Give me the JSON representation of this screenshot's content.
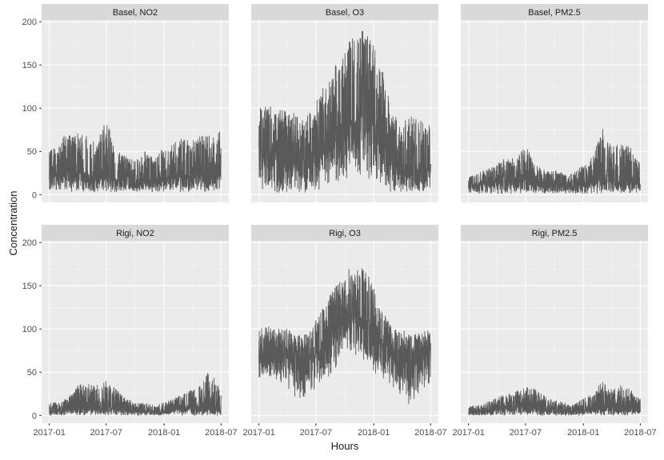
{
  "chart_data": {
    "type": "line",
    "layout": "facet grid 2 rows x 3 columns",
    "xlabel": "Hours",
    "ylabel": "Concentration",
    "ylim": [
      0,
      200
    ],
    "y_ticks": [
      "0",
      "50",
      "100",
      "150",
      "200"
    ],
    "x_range": [
      "2017-01-01",
      "2018-07-01"
    ],
    "x_ticks": [
      {
        "value": "2017-01-01",
        "label": "2017-01"
      },
      {
        "value": "2017-07-01",
        "label": "2017-07"
      },
      {
        "value": "2018-01-01",
        "label": "2018-01"
      },
      {
        "value": "2018-07-01",
        "label": "2018-07"
      }
    ],
    "line_color": "#595959",
    "panel_background": "#ebebeb",
    "strip_background": "#d9d9d9",
    "grid": true,
    "panels": [
      {
        "title": "Basel, NO2",
        "x": [
          "2017-01-01",
          "2017-02-01",
          "2017-03-01",
          "2017-04-01",
          "2017-05-01",
          "2017-06-01",
          "2017-07-01",
          "2017-08-01",
          "2017-09-01",
          "2017-10-01",
          "2017-11-01",
          "2017-12-01",
          "2018-01-01",
          "2018-02-01",
          "2018-03-01",
          "2018-04-01",
          "2018-05-01",
          "2018-06-01",
          "2018-07-01"
        ],
        "y_min": [
          2,
          3,
          3,
          3,
          3,
          3,
          3,
          3,
          3,
          3,
          3,
          3,
          3,
          3,
          3,
          3,
          3,
          3,
          3
        ],
        "y_mean": [
          22,
          24,
          26,
          25,
          22,
          20,
          20,
          18,
          15,
          14,
          16,
          15,
          18,
          20,
          22,
          22,
          24,
          25,
          26
        ],
        "y_max": [
          50,
          58,
          75,
          72,
          68,
          60,
          90,
          50,
          45,
          40,
          50,
          42,
          55,
          60,
          65,
          62,
          70,
          72,
          80
        ]
      },
      {
        "title": "Basel, O3",
        "x": [
          "2017-01-01",
          "2017-02-01",
          "2017-03-01",
          "2017-04-01",
          "2017-05-01",
          "2017-06-01",
          "2017-07-01",
          "2017-08-01",
          "2017-09-01",
          "2017-10-01",
          "2017-11-01",
          "2017-12-01",
          "2018-01-01",
          "2018-02-01",
          "2018-03-01",
          "2018-04-01",
          "2018-05-01",
          "2018-06-01",
          "2018-07-01"
        ],
        "y_min": [
          2,
          2,
          2,
          2,
          2,
          2,
          2,
          5,
          10,
          15,
          20,
          20,
          15,
          5,
          2,
          2,
          2,
          2,
          2
        ],
        "y_mean": [
          40,
          45,
          45,
          42,
          42,
          40,
          45,
          60,
          70,
          80,
          90,
          95,
          85,
          60,
          40,
          30,
          30,
          30,
          30
        ],
        "y_max": [
          100,
          105,
          100,
          95,
          95,
          90,
          110,
          130,
          150,
          170,
          185,
          190,
          175,
          140,
          95,
          90,
          90,
          85,
          80
        ]
      },
      {
        "title": "Basel, PM2.5",
        "x": [
          "2017-01-01",
          "2017-02-01",
          "2017-03-01",
          "2017-04-01",
          "2017-05-01",
          "2017-06-01",
          "2017-07-01",
          "2017-08-01",
          "2017-09-01",
          "2017-10-01",
          "2017-11-01",
          "2017-12-01",
          "2018-01-01",
          "2018-02-01",
          "2018-03-01",
          "2018-04-01",
          "2018-05-01",
          "2018-06-01",
          "2018-07-01"
        ],
        "y_min": [
          1,
          1,
          1,
          1,
          1,
          1,
          1,
          1,
          1,
          1,
          1,
          1,
          1,
          1,
          1,
          1,
          1,
          1,
          1
        ],
        "y_mean": [
          10,
          12,
          14,
          15,
          14,
          12,
          18,
          12,
          10,
          10,
          10,
          9,
          12,
          15,
          18,
          16,
          15,
          14,
          14
        ],
        "y_max": [
          20,
          25,
          30,
          35,
          45,
          40,
          58,
          35,
          28,
          28,
          25,
          25,
          35,
          45,
          78,
          55,
          60,
          55,
          35
        ]
      },
      {
        "title": "Rigi, NO2",
        "x": [
          "2017-01-01",
          "2017-02-01",
          "2017-03-01",
          "2017-04-01",
          "2017-05-01",
          "2017-06-01",
          "2017-07-01",
          "2017-08-01",
          "2017-09-01",
          "2017-10-01",
          "2017-11-01",
          "2017-12-01",
          "2018-01-01",
          "2018-02-01",
          "2018-03-01",
          "2018-04-01",
          "2018-05-01",
          "2018-06-01",
          "2018-07-01"
        ],
        "y_min": [
          0,
          0,
          0,
          0,
          0,
          0,
          0,
          0,
          0,
          0,
          0,
          0,
          0,
          0,
          0,
          0,
          0,
          0,
          0
        ],
        "y_mean": [
          5,
          5,
          6,
          8,
          9,
          8,
          10,
          8,
          6,
          5,
          5,
          4,
          5,
          6,
          8,
          8,
          10,
          8,
          6
        ],
        "y_max": [
          15,
          15,
          20,
          35,
          40,
          35,
          42,
          30,
          20,
          15,
          15,
          12,
          15,
          20,
          25,
          30,
          35,
          60,
          25
        ]
      },
      {
        "title": "Rigi, O3",
        "x": [
          "2017-01-01",
          "2017-02-01",
          "2017-03-01",
          "2017-04-01",
          "2017-05-01",
          "2017-06-01",
          "2017-07-01",
          "2017-08-01",
          "2017-09-01",
          "2017-10-01",
          "2017-11-01",
          "2017-12-01",
          "2018-01-01",
          "2018-02-01",
          "2018-03-01",
          "2018-04-01",
          "2018-05-01",
          "2018-06-01",
          "2018-07-01"
        ],
        "y_min": [
          40,
          45,
          40,
          30,
          20,
          20,
          30,
          40,
          50,
          60,
          65,
          60,
          50,
          40,
          30,
          20,
          10,
          20,
          40
        ],
        "y_mean": [
          70,
          72,
          70,
          68,
          66,
          65,
          70,
          85,
          100,
          110,
          115,
          112,
          100,
          85,
          75,
          70,
          68,
          72,
          80
        ],
        "y_max": [
          100,
          105,
          100,
          100,
          95,
          95,
          110,
          130,
          150,
          165,
          175,
          170,
          150,
          120,
          100,
          100,
          95,
          95,
          100
        ]
      },
      {
        "title": "Rigi, PM2.5",
        "x": [
          "2017-01-01",
          "2017-02-01",
          "2017-03-01",
          "2017-04-01",
          "2017-05-01",
          "2017-06-01",
          "2017-07-01",
          "2017-08-01",
          "2017-09-01",
          "2017-10-01",
          "2017-11-01",
          "2017-12-01",
          "2018-01-01",
          "2018-02-01",
          "2018-03-01",
          "2018-04-01",
          "2018-05-01",
          "2018-06-01",
          "2018-07-01"
        ],
        "y_min": [
          0,
          0,
          0,
          0,
          0,
          0,
          0,
          0,
          0,
          0,
          0,
          0,
          0,
          0,
          0,
          0,
          0,
          0,
          0
        ],
        "y_mean": [
          3,
          4,
          5,
          7,
          8,
          8,
          10,
          9,
          7,
          6,
          5,
          4,
          6,
          7,
          10,
          9,
          9,
          8,
          6
        ],
        "y_max": [
          10,
          12,
          15,
          20,
          25,
          28,
          33,
          30,
          22,
          18,
          15,
          12,
          20,
          25,
          40,
          30,
          35,
          30,
          20
        ]
      }
    ]
  }
}
